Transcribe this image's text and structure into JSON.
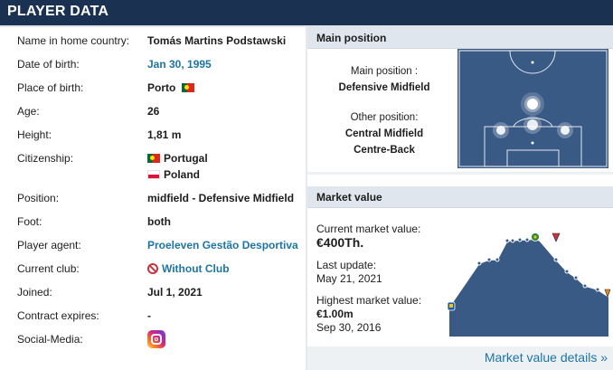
{
  "header": {
    "title": "Player data"
  },
  "player": {
    "rows": [
      {
        "label": "Name in home country:",
        "value": "Tomás Martins Podstawski"
      },
      {
        "label": "Date of birth:",
        "value": "Jan 30, 1995"
      },
      {
        "label": "Place of birth:",
        "value": "Porto"
      },
      {
        "label": "Age:",
        "value": "26"
      },
      {
        "label": "Height:",
        "value": "1,81 m"
      },
      {
        "label": "Citizenship:",
        "value": "Portugal",
        "value2": "Poland"
      },
      {
        "label": "Position:",
        "value": "midfield - Defensive Midfield"
      },
      {
        "label": "Foot:",
        "value": "both"
      },
      {
        "label": "Player agent:",
        "value": "Proeleven Gestão Desportiva"
      },
      {
        "label": "Current club:",
        "value": "Without Club"
      },
      {
        "label": "Joined:",
        "value": "Jul 1, 2021"
      },
      {
        "label": "Contract expires:",
        "value": "-"
      },
      {
        "label": "Social-Media:",
        "value": "instagram-icon"
      }
    ]
  },
  "main_position": {
    "heading": "Main position",
    "main_label": "Main position :",
    "main_value": "Defensive Midfield",
    "other_label": "Other position:",
    "other_values": [
      "Central Midfield",
      "Centre-Back"
    ]
  },
  "market_value": {
    "heading": "Market value",
    "current_label": "Current market value:",
    "current_value": "€400Th.",
    "update_label": "Last update:",
    "update_value": "May 21, 2021",
    "highest_label": "Highest market value:",
    "highest_value": "€1.00m",
    "highest_date": "Sep 30, 2016",
    "details_link": "Market value details »"
  },
  "colors": {
    "header_bg": "#1a3151",
    "link": "#1d75a3",
    "pitch": "#3a5a86",
    "chart_fill": "#3a5a86"
  }
}
